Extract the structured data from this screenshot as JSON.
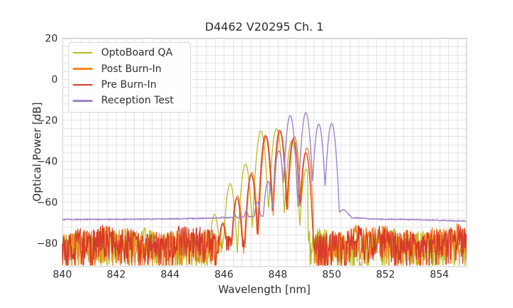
{
  "chart_data": {
    "type": "line",
    "title": "D4462 V20295 Ch. 1",
    "xlabel": "Wavelength [nm]",
    "ylabel": "Optical Power [dB]",
    "xlim": [
      840,
      855
    ],
    "ylim": [
      -91.4,
      20.2
    ],
    "x_ticks": [
      840,
      842,
      844,
      846,
      848,
      850,
      852,
      854
    ],
    "x_tick_labels": [
      "840",
      "842",
      "844",
      "846",
      "848",
      "850",
      "852",
      "854"
    ],
    "y_ticks": [
      -80,
      -60,
      -40,
      -20,
      0,
      20
    ],
    "y_tick_labels": [
      "−80",
      "−60",
      "−40",
      "−20",
      "0",
      "20"
    ],
    "grid": {
      "on": true,
      "x_minor_step_nm": 0.33333,
      "y_minor_step_db": 4
    },
    "legend": {
      "position": "upper left"
    },
    "colors": {
      "grid": "#e4e4e9",
      "spine": "#cccccc",
      "text": "#2e2e2e",
      "background": "#ffffff"
    },
    "series": [
      {
        "name": "OptoBoard QA",
        "color": "#bcbd22",
        "seed": 3,
        "line_width": 1.3,
        "noise_zones": [
          [
            840,
            845.48,
            -0.8
          ],
          [
            849.12,
            855,
            -1.2
          ]
        ],
        "noise_top_db": -73.6,
        "noise_depth_db": 18.5,
        "comb_floor_db": -76.5,
        "comb_floor_var_db": 9,
        "arc_drop_db": 40,
        "mode_half_width_nm": 0.29,
        "modes": [
          [
            845.65,
            -66.0
          ],
          [
            846.23,
            -51.0
          ],
          [
            846.8,
            -41.5
          ],
          [
            847.37,
            -25.3
          ],
          [
            847.95,
            -24.2
          ],
          [
            848.52,
            -30.0
          ],
          [
            849.06,
            -44.0
          ]
        ]
      },
      {
        "name": "Post Burn-In",
        "color": "#f5851f",
        "seed": 11,
        "line_width": 1.3,
        "noise_zones": [
          [
            840,
            845.74,
            -0.6
          ],
          [
            849.32,
            855,
            0.6
          ]
        ],
        "noise_top_db": -73.6,
        "noise_depth_db": 18.5,
        "comb_floor_db": -76.5,
        "comb_floor_var_db": 9,
        "arc_drop_db": 40,
        "mode_half_width_nm": 0.265,
        "modes": [
          [
            845.98,
            -70.0
          ],
          [
            846.51,
            -57.0
          ],
          [
            847.04,
            -45.5
          ],
          [
            847.57,
            -28.0
          ],
          [
            848.1,
            -25.8
          ],
          [
            848.62,
            -28.0
          ],
          [
            849.08,
            -33.5
          ]
        ]
      },
      {
        "name": "Pre Burn-In",
        "color": "#d63a2c",
        "seed": 23,
        "line_width": 1.3,
        "noise_zones": [
          [
            840,
            845.72,
            0
          ],
          [
            849.3,
            855,
            0
          ]
        ],
        "noise_top_db": -73.6,
        "noise_depth_db": 18.5,
        "comb_floor_db": -76.5,
        "comb_floor_var_db": 9,
        "arc_drop_db": 40,
        "mode_half_width_nm": 0.265,
        "modes": [
          [
            845.95,
            -70.5
          ],
          [
            846.48,
            -58.0
          ],
          [
            847.01,
            -46.5
          ],
          [
            847.54,
            -27.5
          ],
          [
            848.07,
            -25.0
          ],
          [
            848.58,
            -29.0
          ],
          [
            849.04,
            -36.0
          ]
        ]
      },
      {
        "name": "Reception Test",
        "color": "#9f82c6",
        "seed": 7,
        "line_width": 1.4,
        "floor_points": [
          [
            840,
            -68.6
          ],
          [
            843,
            -68.4
          ],
          [
            845.2,
            -68.0
          ],
          [
            846.2,
            -67.6
          ],
          [
            847.0,
            -67.2
          ],
          [
            847.8,
            -66.8
          ],
          [
            850.1,
            -66.5
          ],
          [
            850.45,
            -63.6
          ],
          [
            850.75,
            -67.6
          ],
          [
            851.5,
            -68.3
          ],
          [
            853,
            -68.6
          ],
          [
            855,
            -69.3
          ]
        ],
        "floor_jitter_db": 0.55,
        "arc_drop_db": 31,
        "mode_half_width_nm": 0.24,
        "modes": [
          [
            845.95,
            -67.2
          ],
          [
            846.4,
            -66.0
          ],
          [
            846.83,
            -64.3
          ],
          [
            847.24,
            -60.0
          ],
          [
            847.64,
            -50.0
          ],
          [
            848.04,
            -35.0
          ],
          [
            848.46,
            -17.8
          ],
          [
            849.04,
            -16.4
          ],
          [
            849.52,
            -22.0
          ],
          [
            850.0,
            -21.6
          ]
        ]
      }
    ]
  }
}
